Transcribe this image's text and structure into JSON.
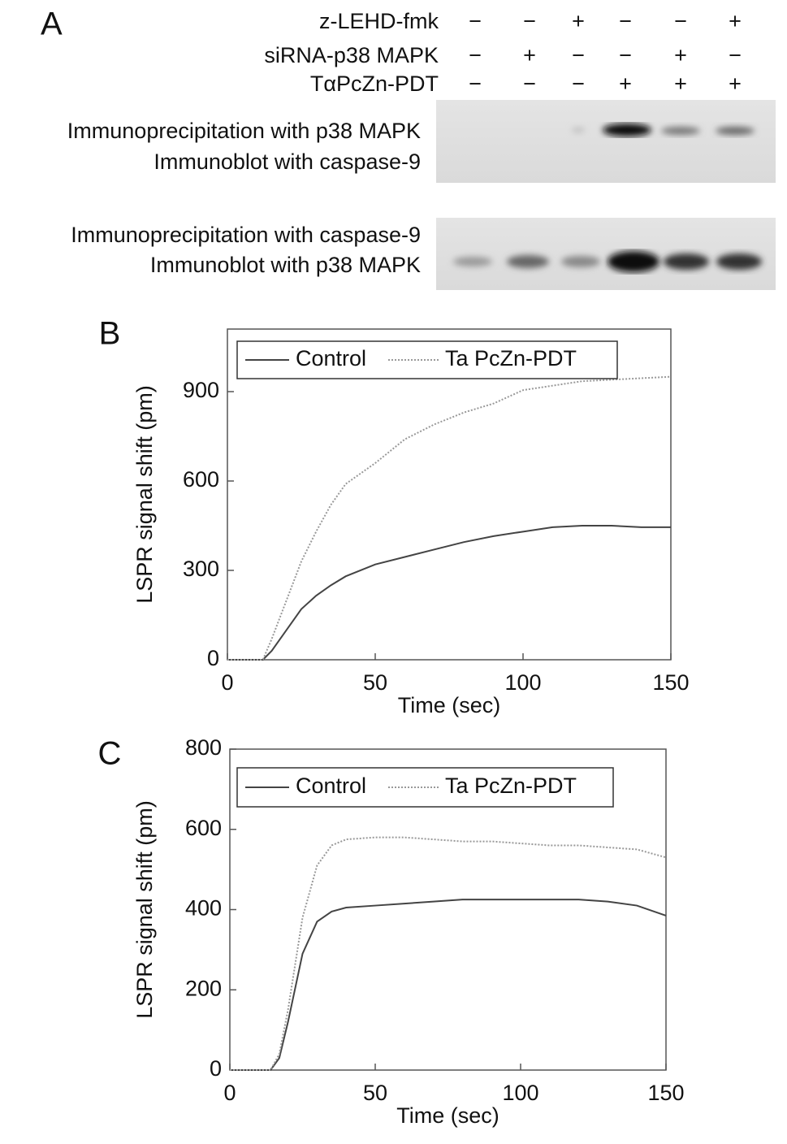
{
  "blot_panel": {
    "panel_label": "A",
    "treatments": [
      {
        "name": "z-LEHD-fmk",
        "signs": [
          "−",
          "−",
          "+",
          "−",
          "−",
          "+"
        ]
      },
      {
        "name": "siRNA-p38 MAPK",
        "signs": [
          "−",
          "+",
          "−",
          "−",
          "+",
          "−"
        ]
      },
      {
        "name": "TαPcZn-PDT",
        "signs": [
          "−",
          "−",
          "−",
          "+",
          "+",
          "+"
        ]
      }
    ],
    "blots": [
      {
        "lines": [
          "Immunoprecipitation with p38 MAPK",
          "Immunoblot with caspase-9"
        ]
      },
      {
        "lines": [
          "Immunoprecipitation with caspase-9",
          "Immunoblot with p38 MAPK"
        ]
      }
    ]
  },
  "chart_data": [
    {
      "type": "line",
      "panel_label": "B",
      "x_label": "Time (sec)",
      "y_label": "LSPR signal shift (pm)",
      "xlim": [
        0,
        150
      ],
      "xticks": [
        0,
        50,
        100,
        150
      ],
      "ylim": [
        0,
        1110
      ],
      "yticks": [
        0,
        300,
        600,
        900
      ],
      "legend": "upper left",
      "x": [
        0,
        5,
        10,
        12,
        15,
        20,
        25,
        30,
        35,
        40,
        50,
        60,
        70,
        80,
        90,
        100,
        110,
        120,
        130,
        140,
        150
      ],
      "series": [
        {
          "name": "Control",
          "color": "#444444",
          "style": "solid",
          "values": [
            0,
            0,
            0,
            0,
            30,
            100,
            170,
            215,
            250,
            280,
            320,
            345,
            370,
            395,
            415,
            430,
            445,
            450,
            450,
            445,
            445
          ]
        },
        {
          "name": "Ta PcZn-PDT",
          "color": "#999999",
          "style": "dotted",
          "values": [
            0,
            0,
            0,
            0,
            70,
            200,
            330,
            430,
            520,
            590,
            660,
            740,
            790,
            830,
            860,
            905,
            920,
            935,
            940,
            945,
            950
          ]
        }
      ]
    },
    {
      "type": "line",
      "panel_label": "C",
      "x_label": "Time (sec)",
      "y_label": "LSPR signal shift (pm)",
      "xlim": [
        0,
        150
      ],
      "xticks": [
        0,
        50,
        100,
        150
      ],
      "ylim": [
        0,
        800
      ],
      "yticks": [
        0,
        200,
        400,
        600,
        800
      ],
      "legend": "upper left",
      "x": [
        0,
        5,
        10,
        14,
        17,
        20,
        25,
        30,
        35,
        40,
        50,
        60,
        70,
        80,
        90,
        100,
        110,
        120,
        130,
        140,
        150
      ],
      "series": [
        {
          "name": "Control",
          "color": "#444444",
          "style": "solid",
          "values": [
            0,
            0,
            0,
            0,
            30,
            120,
            290,
            370,
            395,
            405,
            410,
            415,
            420,
            425,
            425,
            425,
            425,
            425,
            420,
            410,
            385
          ]
        },
        {
          "name": "Ta PcZn-PDT",
          "color": "#999999",
          "style": "dotted",
          "values": [
            0,
            0,
            0,
            0,
            40,
            150,
            380,
            510,
            560,
            575,
            580,
            580,
            575,
            570,
            570,
            565,
            560,
            560,
            555,
            550,
            530
          ]
        }
      ]
    }
  ]
}
